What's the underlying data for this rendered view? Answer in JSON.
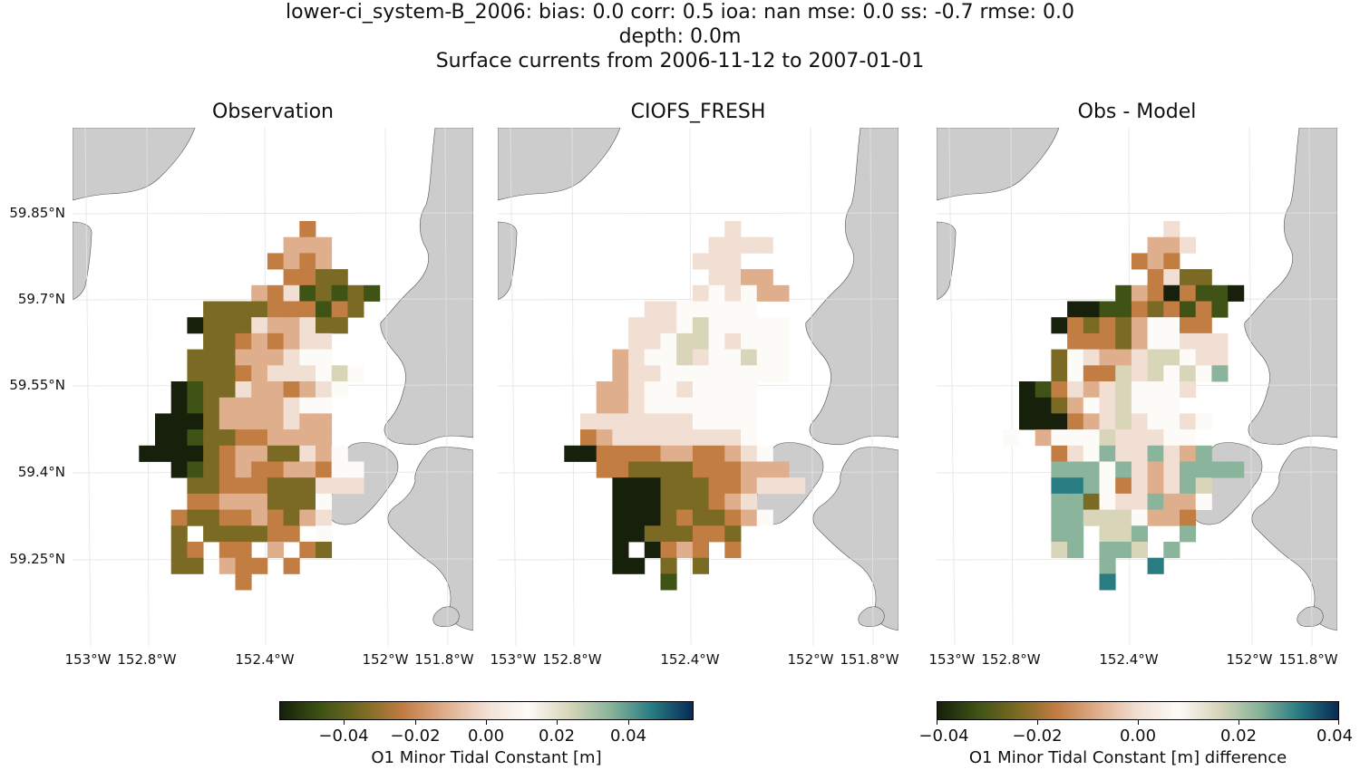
{
  "title": {
    "line1": "lower-ci_system-B_2006: bias: 0.0  corr: 0.5  ioa: nan  mse: 0.0  ss: -0.7  rmse: 0.0",
    "line2": "depth: 0.0m",
    "line3": "Surface currents from 2006-11-12 to 2007-01-01"
  },
  "panels": [
    {
      "title": "Observation",
      "field": "obs"
    },
    {
      "title": "CIOFS_FRESH",
      "field": "model"
    },
    {
      "title": "Obs - Model",
      "field": "diff"
    }
  ],
  "axes": {
    "lat_labels": [
      "59.85°N",
      "59.7°N",
      "59.55°N",
      "59.4°N",
      "59.25°N"
    ],
    "lon_labels": [
      "153°W",
      "152.8°W",
      "152.4°W",
      "152°W",
      "151.8°W"
    ]
  },
  "colors": {
    "land": "#cccccc",
    "cmap": [
      "#16200a",
      "#3e5315",
      "#7a6a24",
      "#c27d43",
      "#dfae8c",
      "#f2dfd3",
      "#fdfbf8",
      "#d8d5b9",
      "#8ab49b",
      "#297c82",
      "#062a57"
    ]
  },
  "colorbars": [
    {
      "label": "O1 Minor Tidal Constant [m]",
      "ticks": [
        "−0.04",
        "−0.02",
        "0.00",
        "0.02",
        "0.04"
      ],
      "range": [
        -0.057,
        0.057
      ],
      "tick_values": [
        -0.04,
        -0.02,
        0.0,
        0.02,
        0.04
      ]
    },
    {
      "label": "O1 Minor Tidal Constant [m] difference",
      "ticks": [
        "−0.04",
        "−0.02",
        "0.00",
        "0.02",
        "0.04"
      ],
      "range": [
        -0.04,
        0.04
      ],
      "tick_values": [
        -0.04,
        -0.02,
        0.0,
        0.02,
        0.04
      ]
    }
  ],
  "chart_data": {
    "type": "heatmap",
    "grid": {
      "rows": 23,
      "cols": 15,
      "row0": "59.84°N",
      "col0": "152.65°W"
    },
    "obs": [
      "..........3....",
      ".........444...",
      "........3434...",
      ".........3322..",
      ".......43512121",
      "....2222333132.",
      "...0222544522..",
      "....22343455...",
      "...222444566...",
      "...22234555676.",
      "..01225443456..",
      "..0124444566...",
      ".00024444544...",
      ".00122334444...",
      "0000234422546..",
      "..012343344366.",
      "...22333222555.",
      "...334442226...",
      "..3223343245...",
      "..2.222233.6...",
      "..23.33.4.32...",
      "..22.433.3.....",
      "......3........"
    ],
    "model": [
      "..........5....",
      ".........5555..",
      "........555....",
      ".........5544..",
      "........565644.",
      ".....5566666...",
      "....5556766666.",
      "....5567765666.",
      "...45667566766.",
      "...45566666666.",
      "..4456656666...",
      "..4456666666...",
      ".55555556666...",
      ".34555555556...",
      "0033334433456..",
      "..332222333444.",
      "...000222334555",
      "...000222345...",
      "...0002322346..",
      "...00222332....",
      "...0.0343.3....",
      "...00.2.2......",
      "......1........"
    ],
    "diff": [
      "..........5....",
      ".........445...",
      "........343....",
      ".........3522..",
      ".......14303110",
      "....0011323131.",
      "...0323246633..",
      "....3332466555.",
      "...26544577655.",
      "...26337576768.",
      ".01354576665...",
      ".0024657666....",
      ".000345756656..",
      "6.4666755566...",
      "...3568558548..",
      "...888685458888",
      "...9986354587..",
      "...8826558446..",
      "...887776443...",
      "...88.778..8...",
      "...78.887.8....",
      "......8..9.....",
      "......9........"
    ]
  }
}
